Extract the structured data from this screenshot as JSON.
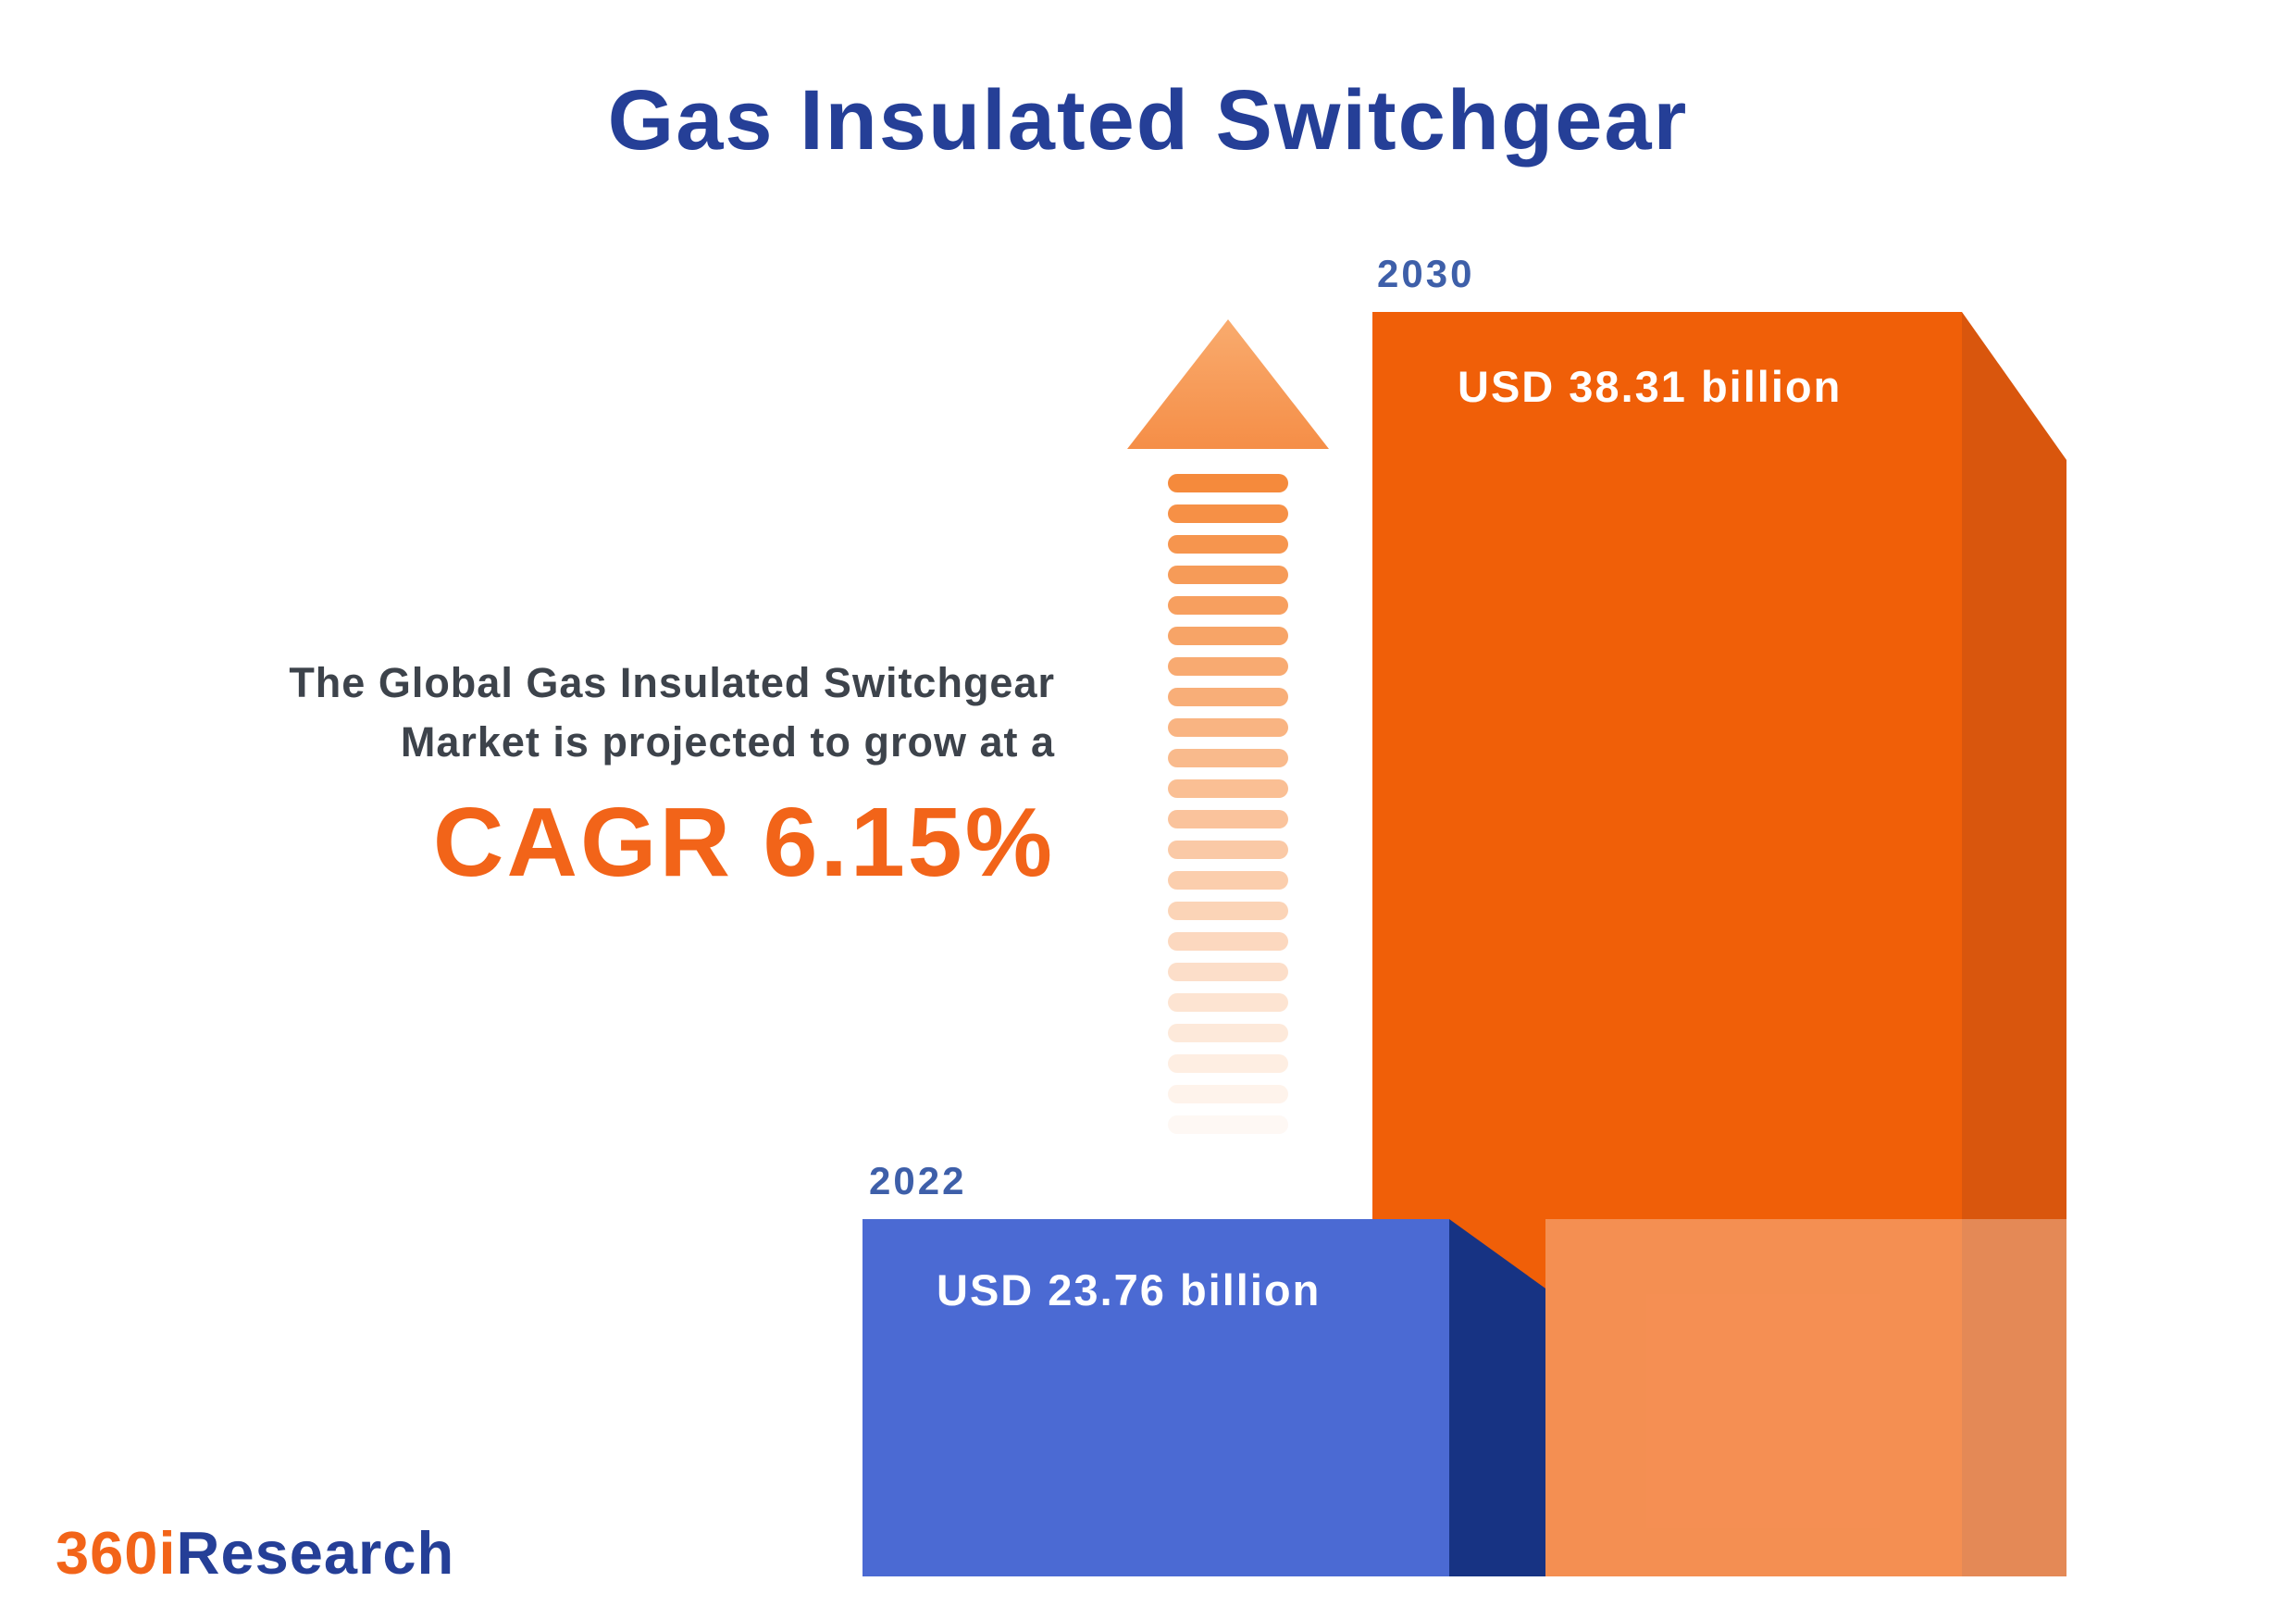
{
  "title": "Gas Insulated Switchgear",
  "annotation": {
    "line1": "The Global Gas Insulated Switchgear",
    "line2": "Market is projected to grow at a",
    "cagr": "CAGR 6.15%"
  },
  "bars": [
    {
      "year": "2022",
      "value_label": "USD 23.76 billion"
    },
    {
      "year": "2030",
      "value_label": "USD 38.31 billion"
    }
  ],
  "logo": {
    "prefix": "360i",
    "suffix": "Research"
  },
  "colors": {
    "title_blue": "#253f97",
    "year_blue": "#3e5fa9",
    "accent_orange": "#f26419",
    "arrow_orange": "#f58a3c",
    "bar_blue": "#4b6ad3",
    "bar_blue_side": "#173383",
    "bar_orange": "#f05f08",
    "bar_orange_side": "#d9560d",
    "text_dark": "#3d434b"
  },
  "chart_data": {
    "type": "bar",
    "title": "Gas Insulated Switchgear",
    "categories": [
      "2022",
      "2030"
    ],
    "values": [
      23.76,
      38.31
    ],
    "unit": "USD billion",
    "value_labels": [
      "USD 23.76 billion",
      "USD 38.31 billion"
    ],
    "cagr_percent": 6.15,
    "annotation": "The Global Gas Insulated Switchgear Market is projected to grow at a CAGR 6.15%",
    "legend_position": "none",
    "grid": false,
    "source": "360iResearch"
  }
}
